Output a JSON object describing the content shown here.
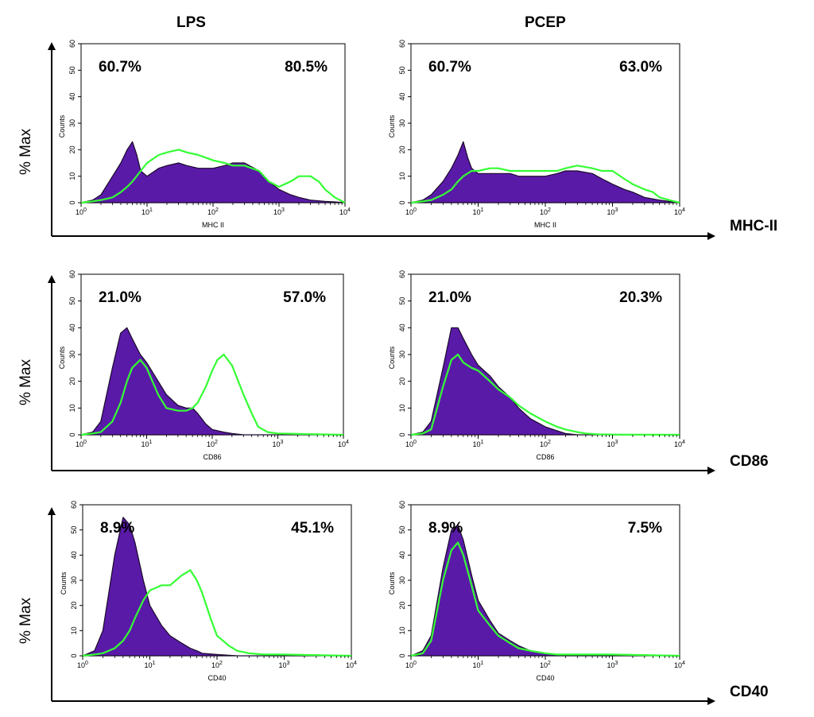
{
  "figure": {
    "columns": [
      "LPS",
      "PCEP"
    ],
    "y_axis_label": "% Max",
    "rows": [
      "MHC-II",
      "CD86",
      "CD40"
    ],
    "counts_label": "Counts",
    "y_ticks": [
      "0",
      "10",
      "20",
      "30",
      "40",
      "50",
      "60"
    ],
    "x_ticks": [
      {
        "base": "10",
        "exp": "0"
      },
      {
        "base": "10",
        "exp": "1"
      },
      {
        "base": "10",
        "exp": "2"
      },
      {
        "base": "10",
        "exp": "3"
      },
      {
        "base": "10",
        "exp": "4"
      }
    ],
    "colors": {
      "filled": "#5a1aa8",
      "filled_edge": "#1a0a2a",
      "line": "#33ff33",
      "axis": "#000000"
    }
  },
  "chart_data": [
    {
      "type": "area",
      "row": "MHC-II",
      "column": "LPS",
      "xlabel": "MHC II",
      "ylabel": "Counts",
      "xscale": "log",
      "xlim": [
        1,
        10000
      ],
      "ylim": [
        0,
        60
      ],
      "annotations": {
        "left_percent": "60.7%",
        "right_percent": "80.5%"
      },
      "series": [
        {
          "name": "filled",
          "x": [
            1,
            1.5,
            2,
            3,
            4,
            5,
            6,
            7,
            8,
            10,
            15,
            20,
            30,
            40,
            60,
            100,
            150,
            200,
            300,
            500,
            700,
            1000,
            1500,
            2000,
            3000,
            5000,
            7000,
            10000
          ],
          "y": [
            0,
            1,
            3,
            10,
            15,
            20,
            23,
            18,
            12,
            10,
            13,
            14,
            15,
            14,
            13,
            13,
            14,
            15,
            15,
            12,
            8,
            5,
            3,
            2,
            1,
            0.5,
            0.3,
            0
          ]
        },
        {
          "name": "line",
          "x": [
            1,
            1.5,
            2,
            3,
            4,
            5,
            6,
            8,
            10,
            15,
            20,
            30,
            40,
            60,
            100,
            150,
            200,
            300,
            500,
            700,
            1000,
            1500,
            2000,
            3000,
            4000,
            5000,
            7000,
            10000
          ],
          "y": [
            0,
            0.5,
            1,
            2,
            4,
            6,
            8,
            12,
            15,
            18,
            19,
            20,
            19,
            18,
            16,
            15,
            14,
            14,
            12,
            8,
            6,
            8,
            10,
            10,
            8,
            5,
            2,
            0
          ]
        }
      ]
    },
    {
      "type": "area",
      "row": "MHC-II",
      "column": "PCEP",
      "xlabel": "MHC II",
      "ylabel": "Counts",
      "xscale": "log",
      "xlim": [
        1,
        10000
      ],
      "ylim": [
        0,
        60
      ],
      "annotations": {
        "left_percent": "60.7%",
        "right_percent": "63.0%"
      },
      "series": [
        {
          "name": "filled",
          "x": [
            1,
            1.5,
            2,
            3,
            4,
            5,
            6,
            7,
            8,
            10,
            15,
            20,
            30,
            40,
            60,
            100,
            150,
            200,
            300,
            500,
            700,
            1000,
            1500,
            2000,
            3000,
            5000,
            7000,
            10000
          ],
          "y": [
            0,
            1,
            3,
            8,
            13,
            18,
            23,
            17,
            13,
            11,
            11,
            11,
            11,
            10,
            10,
            10,
            11,
            12,
            12,
            11,
            9,
            7,
            5,
            4,
            2,
            1,
            0.5,
            0
          ]
        },
        {
          "name": "line",
          "x": [
            1,
            1.5,
            2,
            3,
            4,
            5,
            6,
            8,
            10,
            15,
            20,
            30,
            40,
            60,
            100,
            150,
            200,
            300,
            500,
            700,
            1000,
            1500,
            2000,
            3000,
            4000,
            5000,
            7000,
            10000
          ],
          "y": [
            0,
            0.5,
            1,
            3,
            5,
            8,
            10,
            12,
            12,
            13,
            13,
            12,
            12,
            12,
            12,
            12,
            13,
            14,
            13,
            12,
            12,
            9,
            7,
            5,
            4,
            2,
            1,
            0
          ]
        }
      ]
    },
    {
      "type": "area",
      "row": "CD86",
      "column": "LPS",
      "xlabel": "CD86",
      "ylabel": "Counts",
      "xscale": "log",
      "xlim": [
        1,
        10000
      ],
      "ylim": [
        0,
        60
      ],
      "annotations": {
        "left_percent": "21.0%",
        "right_percent": "57.0%"
      },
      "series": [
        {
          "name": "filled",
          "x": [
            1,
            1.5,
            2,
            3,
            4,
            5,
            6,
            8,
            10,
            15,
            20,
            30,
            40,
            50,
            60,
            80,
            100,
            150,
            200,
            300,
            500,
            1000,
            10000
          ],
          "y": [
            0,
            1,
            5,
            25,
            38,
            40,
            36,
            30,
            27,
            20,
            15,
            11,
            10,
            10,
            8,
            4,
            2,
            1,
            0.5,
            0,
            0,
            0,
            0
          ]
        },
        {
          "name": "line",
          "x": [
            1,
            1.5,
            2,
            3,
            4,
            5,
            6,
            8,
            10,
            15,
            20,
            30,
            40,
            50,
            60,
            80,
            100,
            120,
            150,
            200,
            300,
            400,
            500,
            700,
            1000,
            10000
          ],
          "y": [
            0,
            0.5,
            1,
            5,
            12,
            20,
            25,
            28,
            25,
            15,
            10,
            9,
            9,
            10,
            12,
            18,
            24,
            28,
            30,
            26,
            15,
            8,
            3,
            1,
            0.5,
            0
          ]
        }
      ]
    },
    {
      "type": "area",
      "row": "CD86",
      "column": "PCEP",
      "xlabel": "CD86",
      "ylabel": "Counts",
      "xscale": "log",
      "xlim": [
        1,
        10000
      ],
      "ylim": [
        0,
        60
      ],
      "annotations": {
        "left_percent": "21.0%",
        "right_percent": "20.3%"
      },
      "series": [
        {
          "name": "filled",
          "x": [
            1,
            1.5,
            2,
            3,
            4,
            5,
            6,
            8,
            10,
            15,
            20,
            30,
            40,
            60,
            100,
            150,
            200,
            300,
            400,
            1000,
            10000
          ],
          "y": [
            0,
            1,
            5,
            25,
            40,
            40,
            36,
            30,
            26,
            22,
            18,
            14,
            10,
            6,
            3,
            1.5,
            0.5,
            0,
            0,
            0,
            0
          ]
        },
        {
          "name": "line",
          "x": [
            1,
            1.5,
            2,
            3,
            4,
            5,
            6,
            8,
            10,
            15,
            20,
            30,
            40,
            60,
            100,
            150,
            200,
            300,
            400,
            600,
            1000,
            10000
          ],
          "y": [
            0,
            0.5,
            2,
            18,
            28,
            30,
            27,
            25,
            24,
            20,
            17,
            14,
            11,
            8,
            5,
            3,
            2,
            1,
            0.5,
            0.2,
            0.1,
            0
          ]
        }
      ]
    },
    {
      "type": "area",
      "row": "CD40",
      "column": "LPS",
      "xlabel": "CD40",
      "ylabel": "Counts",
      "xscale": "log",
      "xlim": [
        1,
        10000
      ],
      "ylim": [
        0,
        60
      ],
      "annotations": {
        "left_percent": "8.9%",
        "right_percent": "45.1%"
      },
      "series": [
        {
          "name": "filled",
          "x": [
            1,
            1.5,
            2,
            3,
            4,
            5,
            6,
            8,
            10,
            15,
            20,
            30,
            40,
            50,
            60,
            100,
            200,
            1000,
            10000
          ],
          "y": [
            0,
            2,
            10,
            40,
            55,
            52,
            45,
            30,
            20,
            12,
            8,
            5,
            3,
            2,
            1,
            0.5,
            0,
            0,
            0
          ]
        },
        {
          "name": "line",
          "x": [
            1,
            1.5,
            2,
            3,
            4,
            5,
            6,
            8,
            10,
            15,
            20,
            30,
            40,
            50,
            60,
            80,
            100,
            150,
            200,
            300,
            500,
            1000,
            10000
          ],
          "y": [
            0,
            0.5,
            1,
            3,
            6,
            10,
            15,
            22,
            26,
            28,
            28,
            32,
            34,
            30,
            25,
            15,
            8,
            4,
            2,
            1,
            0.5,
            0.5,
            0
          ]
        }
      ]
    },
    {
      "type": "area",
      "row": "CD40",
      "column": "PCEP",
      "xlabel": "CD40",
      "ylabel": "Counts",
      "xscale": "log",
      "xlim": [
        1,
        10000
      ],
      "ylim": [
        0,
        60
      ],
      "annotations": {
        "left_percent": "8.9%",
        "right_percent": "7.5%"
      },
      "series": [
        {
          "name": "filled",
          "x": [
            1,
            1.5,
            2,
            3,
            4,
            5,
            6,
            8,
            10,
            15,
            20,
            30,
            40,
            60,
            100,
            150,
            200,
            1000,
            10000
          ],
          "y": [
            0,
            2,
            8,
            35,
            50,
            52,
            46,
            32,
            22,
            14,
            9,
            6,
            4,
            2,
            1,
            0.5,
            0,
            0,
            0
          ]
        },
        {
          "name": "line",
          "x": [
            1,
            1.5,
            2,
            3,
            4,
            5,
            6,
            8,
            10,
            15,
            20,
            30,
            40,
            60,
            100,
            150,
            200,
            500,
            1000,
            10000
          ],
          "y": [
            0,
            1,
            6,
            30,
            42,
            45,
            40,
            28,
            18,
            12,
            8,
            5,
            3,
            2,
            1,
            0.5,
            0.5,
            0.5,
            0.5,
            0
          ]
        }
      ]
    }
  ]
}
